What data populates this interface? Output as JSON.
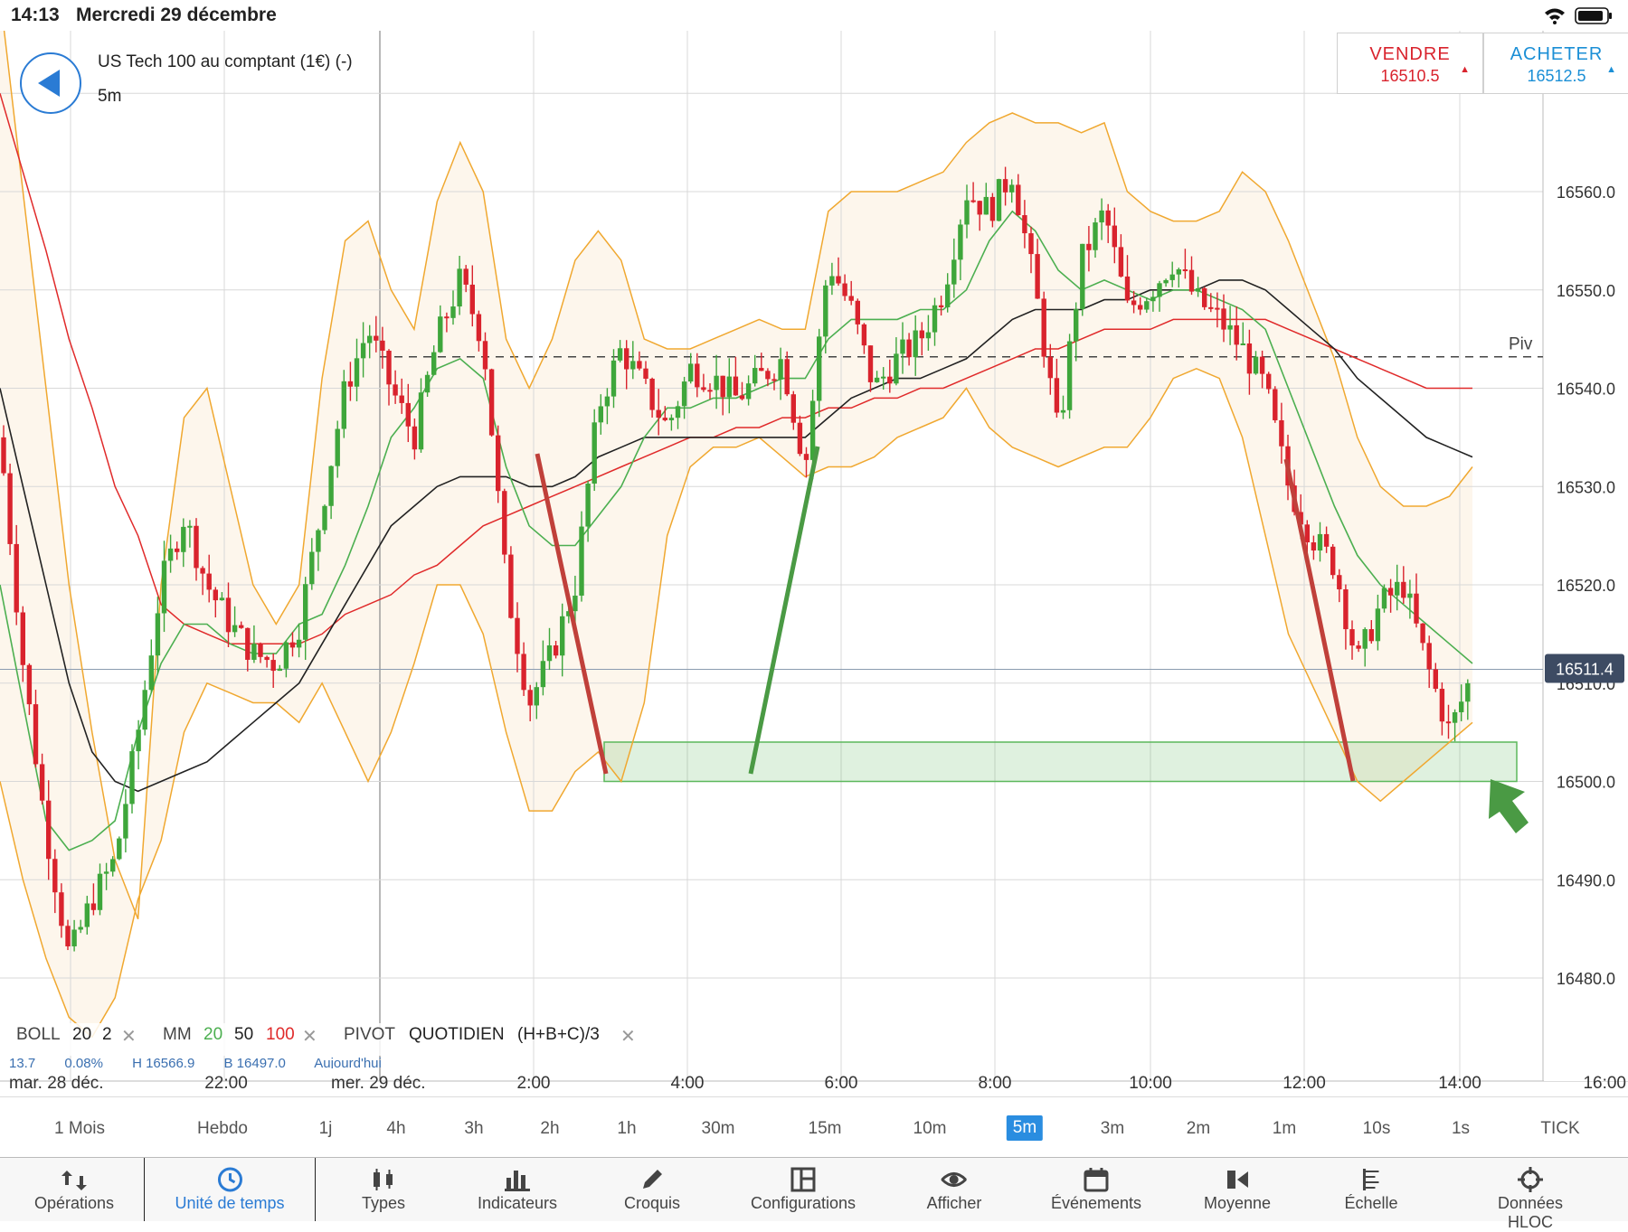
{
  "status_bar": {
    "time": "14:13",
    "date": "Mercredi 29 décembre"
  },
  "header": {
    "instrument": "US Tech 100 au comptant (1€) (-)",
    "timeframe": "5m"
  },
  "sell": {
    "label": "VENDRE",
    "price": "16510.5"
  },
  "buy": {
    "label": "ACHETER",
    "price": "16512.5"
  },
  "colors": {
    "bull": "#3ea63b",
    "bear": "#d9232d",
    "boll": "#f0a830",
    "ma20": "#4caf50",
    "ma50": "#222222",
    "ma100": "#e02a2a",
    "accent": "#2a8de0"
  },
  "chart_data": {
    "type": "candlestick",
    "y_ticks": [
      "16560.0",
      "16550.0",
      "16540.0",
      "16530.0",
      "16520.0",
      "16510.0",
      "16500.0",
      "16490.0",
      "16480.0"
    ],
    "ylim": [
      16476,
      16572
    ],
    "current_price": "16511.4",
    "pivot": {
      "label": "Piv",
      "value": 16543.2
    },
    "x_labels": [
      "mar. 28 déc.",
      "22:00",
      "mer. 29 déc.",
      "2:00",
      "4:00",
      "6:00",
      "8:00",
      "10:00",
      "12:00",
      "14:00",
      "16:00"
    ],
    "close_path": [
      16535,
      16512,
      16495,
      16482,
      16488,
      16492,
      16505,
      16520,
      16527,
      16520,
      16516,
      16513,
      16512,
      16516,
      16528,
      16540,
      16546,
      16540,
      16535,
      16545,
      16551,
      16545,
      16520,
      16508,
      16513,
      16520,
      16538,
      16544,
      16540,
      16536,
      16542,
      16541,
      16539,
      16541,
      16543,
      16532,
      16553,
      16548,
      16540,
      16543,
      16545,
      16550,
      16560,
      16558,
      16562,
      16550,
      16535,
      16553,
      16558,
      16548,
      16550,
      16553,
      16549,
      16547,
      16544,
      16540,
      16530,
      16525,
      16522,
      16512,
      16518,
      16520,
      16512,
      16505,
      16511
    ],
    "boll_upper_path": [
      16580,
      16560,
      16540,
      16520,
      16505,
      16492,
      16486,
      16520,
      16537,
      16540,
      16530,
      16520,
      16516,
      16520,
      16541,
      16555,
      16557,
      16550,
      16546,
      16559,
      16565,
      16560,
      16545,
      16540,
      16545,
      16553,
      16556,
      16553,
      16545,
      16544,
      16544,
      16545,
      16546,
      16547,
      16546,
      16546,
      16558,
      16560,
      16560,
      16560,
      16561,
      16562,
      16565,
      16567,
      16568,
      16567,
      16567,
      16566,
      16567,
      16560,
      16558,
      16557,
      16557,
      16558,
      16562,
      16560,
      16555,
      16549,
      16543,
      16535,
      16530,
      16528,
      16528,
      16529,
      16532
    ],
    "boll_lower_path": [
      16500,
      16490,
      16482,
      16476,
      16474,
      16478,
      16488,
      16494,
      16505,
      16510,
      16509,
      16508,
      16508,
      16506,
      16510,
      16505,
      16500,
      16505,
      16512,
      16520,
      16520,
      16515,
      16505,
      16497,
      16497,
      16501,
      16503,
      16500,
      16508,
      16525,
      16532,
      16534,
      16534,
      16535,
      16533,
      16531,
      16532,
      16532,
      16533,
      16535,
      16536,
      16537,
      16540,
      16536,
      16534,
      16533,
      16532,
      16533,
      16534,
      16534,
      16537,
      16541,
      16542,
      16541,
      16535,
      16525,
      16515,
      16510,
      16505,
      16500,
      16498,
      16500,
      16502,
      16504,
      16506
    ],
    "ma20_path": [
      16520,
      16508,
      16496,
      16493,
      16494,
      16496,
      16505,
      16512,
      16516,
      16516,
      16514,
      16513,
      16513,
      16516,
      16517,
      16522,
      16528,
      16535,
      16538,
      16542,
      16543,
      16541,
      16532,
      16526,
      16524,
      16524,
      16527,
      16530,
      16535,
      16538,
      16538,
      16539,
      16539,
      16540,
      16541,
      16541,
      16545,
      16547,
      16547,
      16547,
      16548,
      16548,
      16550,
      16555,
      16558,
      16556,
      16552,
      16550,
      16551,
      16550,
      16549,
      16550,
      16550,
      16549,
      16548,
      16546,
      16540,
      16534,
      16528,
      16523,
      16520,
      16518,
      16516,
      16514,
      16512
    ],
    "ma50_path": [
      16540,
      16530,
      16520,
      16510,
      16503,
      16500,
      16499,
      16500,
      16501,
      16502,
      16504,
      16506,
      16508,
      16510,
      16514,
      16518,
      16522,
      16526,
      16528,
      16530,
      16531,
      16531,
      16531,
      16530,
      16530,
      16531,
      16533,
      16534,
      16535,
      16535,
      16535,
      16535,
      16535,
      16535,
      16535,
      16535,
      16537,
      16539,
      16540,
      16541,
      16541,
      16542,
      16543,
      16545,
      16547,
      16548,
      16548,
      16548,
      16549,
      16549,
      16550,
      16550,
      16550,
      16551,
      16551,
      16550,
      16548,
      16546,
      16544,
      16541,
      16539,
      16537,
      16535,
      16534,
      16533
    ],
    "ma100_path": [
      16570,
      16562,
      16554,
      16545,
      16538,
      16530,
      16525,
      16518,
      16516,
      16515,
      16514,
      16514,
      16514,
      16514,
      16515,
      16517,
      16518,
      16519,
      16521,
      16522,
      16524,
      16526,
      16527,
      16528,
      16529,
      16530,
      16531,
      16532,
      16533,
      16534,
      16535,
      16535,
      16536,
      16536,
      16537,
      16537,
      16538,
      16538,
      16539,
      16539,
      16540,
      16540,
      16541,
      16542,
      16543,
      16544,
      16544,
      16545,
      16546,
      16546,
      16546,
      16547,
      16547,
      16547,
      16547,
      16547,
      16546,
      16545,
      16544,
      16543,
      16542,
      16541,
      16540,
      16540,
      16540
    ],
    "support_zone": {
      "low": 16500,
      "high": 16504
    },
    "indicators": {
      "boll": {
        "label": "BOLL",
        "period": "20",
        "dev": "2"
      },
      "mm": {
        "label": "MM",
        "p1": "20",
        "p2": "50",
        "p3": "100"
      },
      "pivot": {
        "label": "PIVOT",
        "mode": "QUOTIDIEN",
        "formula": "(H+B+C)/3"
      }
    },
    "info_row": [
      "13.7",
      "0.08%",
      "H 16566.9",
      "B 16497.0",
      "Aujourd'hui"
    ]
  },
  "timeframes": [
    {
      "label": "1 Mois"
    },
    {
      "label": "Hebdo"
    },
    {
      "label": "1j"
    },
    {
      "label": "4h"
    },
    {
      "label": "3h"
    },
    {
      "label": "2h"
    },
    {
      "label": "1h"
    },
    {
      "label": "30m"
    },
    {
      "label": "15m"
    },
    {
      "label": "10m"
    },
    {
      "label": "5m",
      "active": true
    },
    {
      "label": "3m"
    },
    {
      "label": "2m"
    },
    {
      "label": "1m"
    },
    {
      "label": "10s"
    },
    {
      "label": "1s"
    },
    {
      "label": "TICK"
    }
  ],
  "toolbar": [
    {
      "label": "Opérations",
      "icon": "transfer-icon"
    },
    {
      "label": "Unité de temps",
      "icon": "clock-icon",
      "active": true
    },
    {
      "label": "Types",
      "icon": "candles-icon"
    },
    {
      "label": "Indicateurs",
      "icon": "bar-chart-icon"
    },
    {
      "label": "Croquis",
      "icon": "pencil-icon"
    },
    {
      "label": "Configurations",
      "icon": "layout-icon"
    },
    {
      "label": "Afficher",
      "icon": "eye-icon"
    },
    {
      "label": "Événements",
      "icon": "calendar-icon"
    },
    {
      "label": "Moyenne",
      "icon": "average-icon"
    },
    {
      "label": "Échelle",
      "icon": "scale-icon"
    },
    {
      "label": "Données HLOC",
      "icon": "crosshair-icon"
    }
  ]
}
